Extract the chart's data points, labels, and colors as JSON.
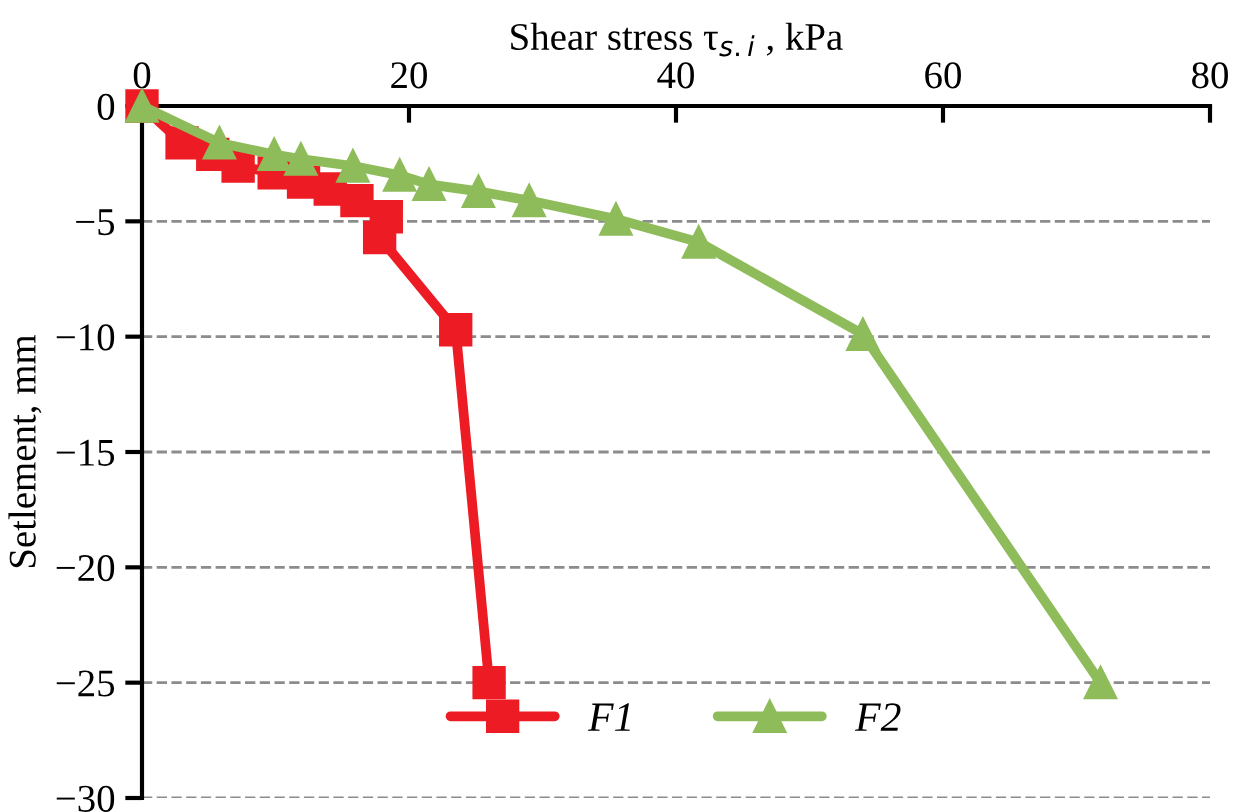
{
  "chart_data": {
    "type": "line",
    "xlabel": "Shear stress τ$_{s.i}$ , kPa",
    "ylabel": "Setlement, mm",
    "xlim": [
      0,
      80
    ],
    "xticks": [
      0,
      20,
      40,
      60,
      80
    ],
    "ylim": [
      -30,
      0
    ],
    "yticks": [
      {
        "value": 0,
        "label": "0"
      },
      {
        "value": -5,
        "label": "−5"
      },
      {
        "value": -10,
        "label": "−10"
      },
      {
        "value": -15,
        "label": "−15"
      },
      {
        "value": -20,
        "label": "−20"
      },
      {
        "value": -25,
        "label": "−25"
      },
      {
        "value": -30,
        "label": "−30"
      }
    ],
    "grid": "y",
    "legend": "bottom",
    "series": [
      {
        "name": "F1",
        "color": "#ed1c24",
        "marker": "square",
        "x": [
          0,
          3.0,
          5.3,
          7.2,
          9.9,
          12.1,
          14.1,
          16.1,
          18.3,
          17.8,
          23.5,
          26
        ],
        "values": [
          0,
          -1.6,
          -2.1,
          -2.6,
          -2.9,
          -3.3,
          -3.6,
          -4.1,
          -4.8,
          -5.7,
          -9.7,
          -25
        ]
      },
      {
        "name": "F2",
        "color": "#8fbc5a",
        "marker": "triangle",
        "x": [
          0,
          5.8,
          9.9,
          11.9,
          15.8,
          19.3,
          21.5,
          25.2,
          29.0,
          35.5,
          41.7,
          54,
          71.8
        ],
        "values": [
          0,
          -1.6,
          -2.1,
          -2.3,
          -2.6,
          -3.0,
          -3.4,
          -3.7,
          -4.1,
          -4.9,
          -5.9,
          -9.9,
          -25
        ]
      }
    ]
  }
}
